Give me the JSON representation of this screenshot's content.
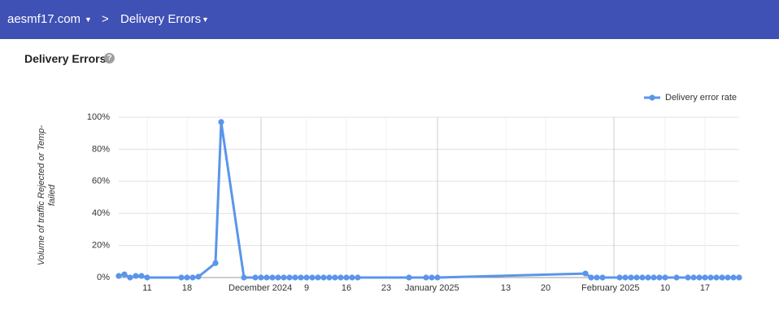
{
  "breadcrumb": [
    "aesmf17.com",
    "Delivery Errors"
  ],
  "card_title": "Delivery Errors",
  "chart_data": {
    "type": "line",
    "ylabel": [
      "Volume of traffic Rejected or Temp-",
      "failed"
    ],
    "x": [
      "2024-11-06",
      "2024-11-07",
      "2024-11-08",
      "2024-11-09",
      "2024-11-10",
      "2024-11-11",
      "2024-11-17",
      "2024-11-18",
      "2024-11-19",
      "2024-11-20",
      "2024-11-23",
      "2024-11-24",
      "2024-11-28",
      "2024-11-30",
      "2024-12-01",
      "2024-12-02",
      "2024-12-03",
      "2024-12-04",
      "2024-12-05",
      "2024-12-06",
      "2024-12-07",
      "2024-12-08",
      "2024-12-09",
      "2024-12-10",
      "2024-12-11",
      "2024-12-12",
      "2024-12-13",
      "2024-12-14",
      "2024-12-15",
      "2024-12-16",
      "2024-12-17",
      "2024-12-18",
      "2024-12-27",
      "2024-12-30",
      "2024-12-31",
      "2025-01-01",
      "2025-01-27",
      "2025-01-28",
      "2025-01-29",
      "2025-01-30",
      "2025-02-02",
      "2025-02-03",
      "2025-02-04",
      "2025-02-05",
      "2025-02-06",
      "2025-02-07",
      "2025-02-08",
      "2025-02-09",
      "2025-02-10",
      "2025-02-12",
      "2025-02-14",
      "2025-02-15",
      "2025-02-16",
      "2025-02-17",
      "2025-02-18",
      "2025-02-19",
      "2025-02-20",
      "2025-02-21",
      "2025-02-22",
      "2025-02-23"
    ],
    "series": [
      {
        "name": "Delivery error rate",
        "color": "#5b95eb",
        "values": [
          1,
          2,
          0,
          1,
          1,
          0,
          0,
          0,
          0,
          0.5,
          9,
          97,
          0,
          0,
          0,
          0,
          0,
          0,
          0,
          0,
          0,
          0,
          0,
          0,
          0,
          0,
          0,
          0,
          0,
          0,
          0,
          0,
          0,
          0,
          0,
          0,
          2.5,
          0,
          0,
          0,
          0,
          0,
          0,
          0,
          0,
          0,
          0,
          0,
          0,
          0,
          0,
          0,
          0,
          0,
          0,
          0,
          0,
          0,
          0,
          0
        ]
      }
    ],
    "xlim": [
      "2024-11-06",
      "2025-02-23"
    ],
    "xticks": [
      {
        "value": "2024-11-11",
        "label": "11"
      },
      {
        "value": "2024-11-18",
        "label": "18"
      },
      {
        "value": "2024-12-01",
        "label": "December 2024"
      },
      {
        "value": "2024-12-09",
        "label": "9"
      },
      {
        "value": "2024-12-16",
        "label": "16"
      },
      {
        "value": "2024-12-23",
        "label": "23"
      },
      {
        "value": "2025-01-01",
        "label": "January 2025"
      },
      {
        "value": "2025-01-13",
        "label": "13"
      },
      {
        "value": "2025-01-20",
        "label": "20"
      },
      {
        "value": "2025-02-01",
        "label": "February 2025"
      },
      {
        "value": "2025-02-10",
        "label": "10"
      },
      {
        "value": "2025-02-17",
        "label": "17"
      }
    ],
    "ylim": [
      0,
      100
    ],
    "yticks": [
      {
        "value": 0,
        "label": "0%"
      },
      {
        "value": 20,
        "label": "20%"
      },
      {
        "value": 40,
        "label": "40%"
      },
      {
        "value": 60,
        "label": "60%"
      },
      {
        "value": 80,
        "label": "80%"
      },
      {
        "value": 100,
        "label": "100%"
      }
    ],
    "grid": true,
    "legend": "top-right"
  }
}
